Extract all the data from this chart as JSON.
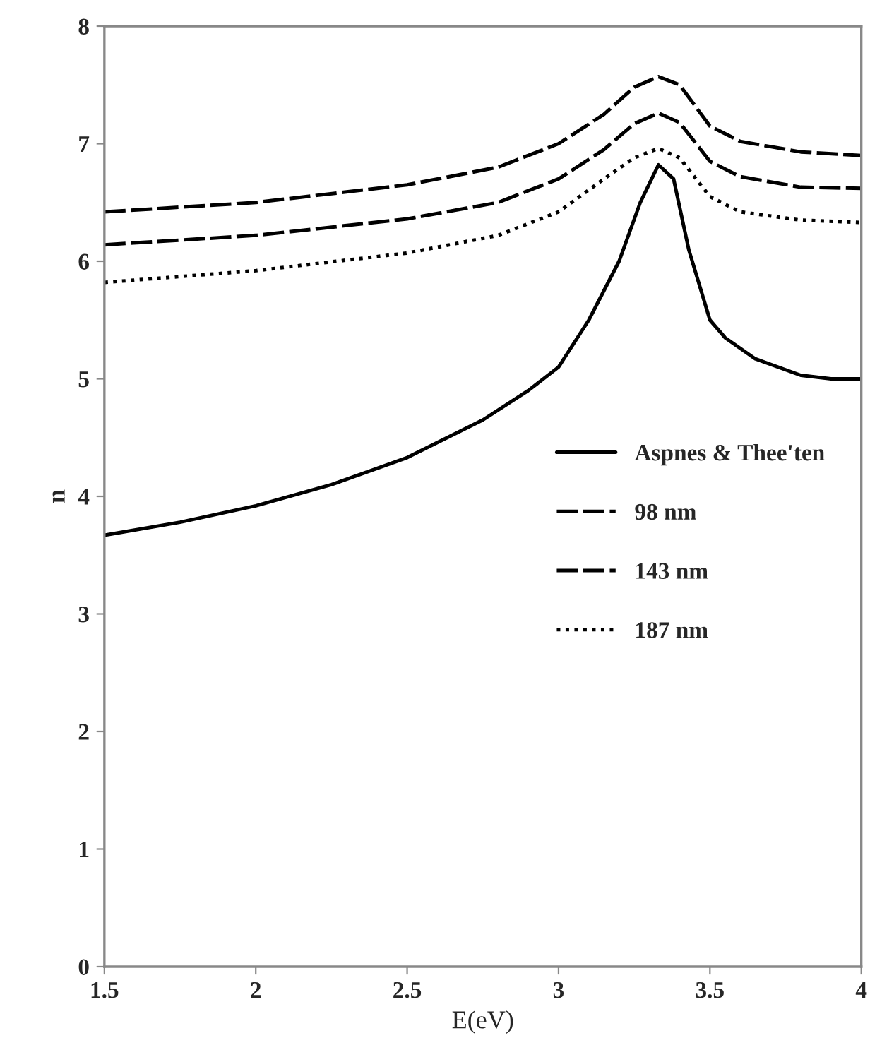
{
  "chart_data": {
    "type": "line",
    "xlabel": "E(eV)",
    "ylabel": "n",
    "xlim": [
      1.5,
      4
    ],
    "xticks": [
      1.5,
      2,
      2.5,
      3,
      3.5,
      4
    ],
    "ylim": [
      0,
      8
    ],
    "yticks": [
      0,
      1,
      2,
      3,
      4,
      5,
      6,
      7,
      8
    ],
    "grid": false,
    "legend": "right",
    "marker": "none",
    "series": [
      {
        "name": "Aspnes & Thee'ten",
        "color": "#000000",
        "line_style": "solid",
        "x": [
          1.5,
          1.75,
          2.0,
          2.25,
          2.5,
          2.75,
          2.9,
          3.0,
          3.1,
          3.2,
          3.27,
          3.33,
          3.38,
          3.43,
          3.5,
          3.55,
          3.65,
          3.8,
          3.9,
          4.0
        ],
        "values": [
          3.67,
          3.78,
          3.92,
          4.1,
          4.33,
          4.65,
          4.9,
          5.1,
          5.5,
          6.0,
          6.5,
          6.82,
          6.7,
          6.1,
          5.5,
          5.35,
          5.17,
          5.03,
          5.0,
          5.0
        ]
      },
      {
        "name": "98 nm",
        "color": "#000000",
        "line_style": "dashed",
        "x": [
          1.5,
          2.0,
          2.5,
          2.8,
          3.0,
          3.15,
          3.25,
          3.33,
          3.4,
          3.5,
          3.6,
          3.8,
          4.0
        ],
        "values": [
          6.42,
          6.5,
          6.65,
          6.8,
          7.0,
          7.25,
          7.48,
          7.57,
          7.5,
          7.15,
          7.02,
          6.93,
          6.9
        ]
      },
      {
        "name": "143 nm",
        "color": "#000000",
        "line_style": "dashed",
        "x": [
          1.5,
          2.0,
          2.5,
          2.8,
          3.0,
          3.15,
          3.25,
          3.33,
          3.4,
          3.5,
          3.6,
          3.8,
          4.0
        ],
        "values": [
          6.14,
          6.22,
          6.36,
          6.5,
          6.7,
          6.95,
          7.17,
          7.26,
          7.18,
          6.85,
          6.72,
          6.63,
          6.62
        ]
      },
      {
        "name": "187 nm",
        "color": "#000000",
        "line_style": "dotted",
        "x": [
          1.5,
          2.0,
          2.5,
          2.8,
          3.0,
          3.15,
          3.25,
          3.33,
          3.4,
          3.5,
          3.6,
          3.8,
          4.0
        ],
        "values": [
          5.82,
          5.92,
          6.07,
          6.22,
          6.42,
          6.7,
          6.88,
          6.96,
          6.88,
          6.55,
          6.42,
          6.35,
          6.33
        ]
      }
    ]
  }
}
